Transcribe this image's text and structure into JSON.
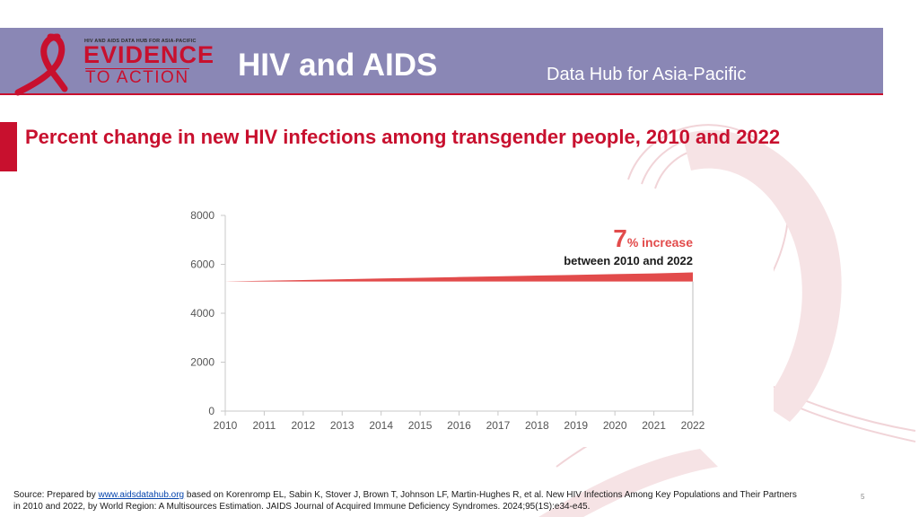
{
  "header": {
    "logo_small": "HIV AND AIDS DATA HUB FOR ASIA-PACIFIC",
    "logo_line1": "EVIDENCE",
    "logo_line2": "TO ACTION",
    "title": "HIV and AIDS",
    "subtitle": "Data Hub for Asia-Pacific"
  },
  "page": {
    "title": "Percent change in new HIV infections among transgender people, 2010 and 2022",
    "slide_number": "5"
  },
  "callout": {
    "number": "7",
    "suffix": "% increase",
    "subtext": "between 2010 and 2022"
  },
  "source": {
    "prefix": "Source: Prepared by ",
    "link": "www.aidsdatahub.org",
    "rest": " based on Korenromp EL, Sabin K, Stover J, Brown T, Johnson LF, Martin-Hughes R, et al. New HIV Infections Among Key Populations and Their Partners in 2010 and 2022, by World Region: A Multisources Estimation. JAIDS Journal of Acquired Immune Deficiency Syndromes. 2024;95(1S):e34-e45."
  },
  "colors": {
    "header_bg": "#8a87b5",
    "accent": "#c8102e",
    "series": "#e24b4b"
  },
  "chart_data": {
    "type": "area",
    "title": "",
    "xlabel": "",
    "ylabel": "",
    "x": [
      2010,
      2011,
      2012,
      2013,
      2014,
      2015,
      2016,
      2017,
      2018,
      2019,
      2020,
      2021,
      2022
    ],
    "categories": [
      "2010",
      "2011",
      "2012",
      "2013",
      "2014",
      "2015",
      "2016",
      "2017",
      "2018",
      "2019",
      "2020",
      "2021",
      "2022"
    ],
    "series": [
      {
        "name": "",
        "lower": [
          5300,
          5300,
          5300,
          5300,
          5300,
          5300,
          5300,
          5300,
          5300,
          5300,
          5300,
          5300,
          5300
        ],
        "upper": [
          5300,
          5330,
          5360,
          5390,
          5420,
          5450,
          5480,
          5510,
          5540,
          5570,
          5600,
          5630,
          5670
        ]
      }
    ],
    "ylim": [
      0,
      8000
    ],
    "yticks": [
      0,
      2000,
      4000,
      6000,
      8000
    ],
    "ytick_labels": [
      "0",
      "2000",
      "4000",
      "6000",
      "8000"
    ],
    "grid": false,
    "legend": "none"
  }
}
